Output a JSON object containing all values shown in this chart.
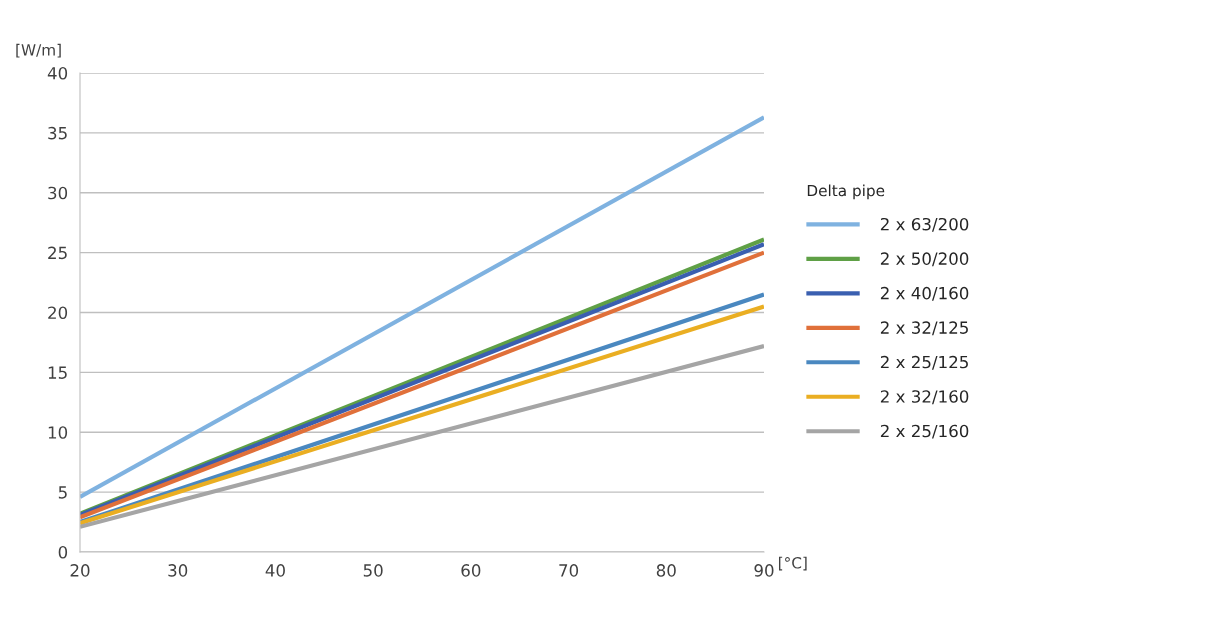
{
  "chart_data": {
    "type": "line",
    "ylabel": "[W/m]",
    "xlabel": "[°C]",
    "legend_title": "Delta pipe",
    "x": [
      20,
      90
    ],
    "series": [
      {
        "name": "2 x 63/200",
        "color": "#7fb2e0",
        "values": [
          4.6,
          36.3
        ]
      },
      {
        "name": "2 x 50/200",
        "color": "#5fa046",
        "values": [
          3.2,
          26.1
        ]
      },
      {
        "name": "2 x 40/160",
        "color": "#3a5fb0",
        "values": [
          3.1,
          25.7
        ]
      },
      {
        "name": "2 x 32/125",
        "color": "#e0703a",
        "values": [
          2.9,
          25.0
        ]
      },
      {
        "name": "2 x 25/125",
        "color": "#4a88c0",
        "values": [
          2.5,
          21.5
        ]
      },
      {
        "name": "2 x 32/160",
        "color": "#eaae22",
        "values": [
          2.4,
          20.5
        ]
      },
      {
        "name": "2 x 25/160",
        "color": "#a5a5a5",
        "values": [
          2.1,
          17.2
        ]
      }
    ],
    "xlim": [
      20,
      90
    ],
    "xticks": [
      20,
      30,
      40,
      50,
      60,
      70,
      80,
      90
    ],
    "ylim": [
      0,
      40
    ],
    "yticks": [
      0,
      5,
      10,
      15,
      20,
      25,
      30,
      35,
      40
    ],
    "grid": "y",
    "legend": "right",
    "marker": "none",
    "line_style": "solid"
  }
}
